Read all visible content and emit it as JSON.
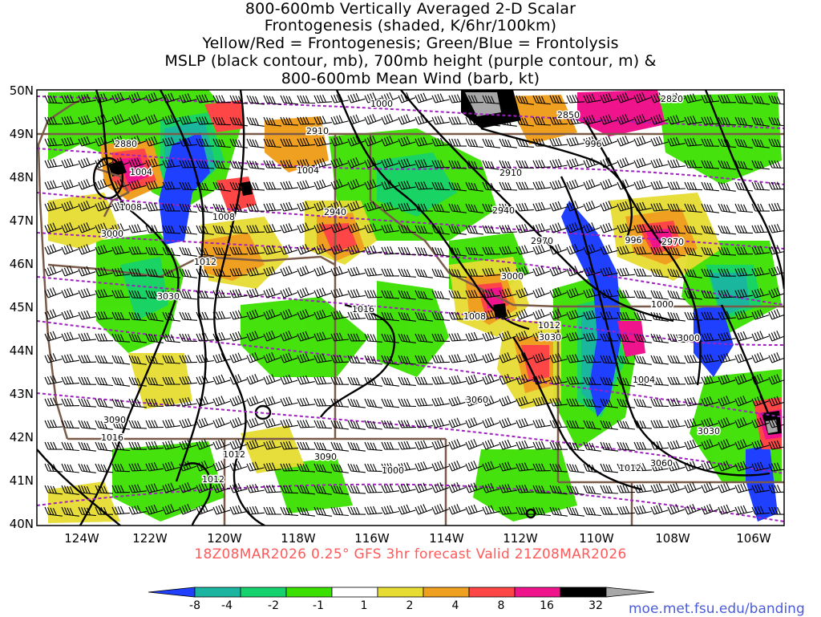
{
  "title_lines": [
    "800-600mb Vertically Averaged 2-D Scalar",
    "Frontogenesis (shaded, K/6hr/100km)",
    "Yellow/Red = Frontogenesis;  Green/Blue = Frontolysis",
    "MSLP (black contour, mb), 700mb height (purple contour, m) &",
    "800-600mb Mean Wind (barb, kt)"
  ],
  "map": {
    "lat_labels": [
      "50N",
      "49N",
      "48N",
      "47N",
      "46N",
      "45N",
      "44N",
      "43N",
      "42N",
      "41N",
      "40N"
    ],
    "lon_labels": [
      "124W",
      "122W",
      "120W",
      "118W",
      "116W",
      "114W",
      "112W",
      "110W",
      "108W",
      "106W"
    ],
    "mslp_labels": [
      "1000",
      "1004",
      "1008",
      "1012",
      "1016",
      "1000",
      "1004",
      "1008",
      "1012",
      "1016",
      "1012",
      "1012",
      "996",
      "1000",
      "1004",
      "1012",
      "996",
      "1008"
    ],
    "height_labels": [
      "2820",
      "2850",
      "2880",
      "2910",
      "2940",
      "2970",
      "3000",
      "3030",
      "3060",
      "3090",
      "2910",
      "2940",
      "2970",
      "3000",
      "3030",
      "3060",
      "3090",
      "3000",
      "3030"
    ],
    "colors": {
      "contour_mslp": "#000000",
      "contour_height": "#a020c0",
      "border": "#7a5a48",
      "wind_barb": "#000000"
    }
  },
  "footer": "18Z08MAR2026 0.25° GFS 3hr forecast Valid 21Z08MAR2026",
  "colorbar": {
    "labels": [
      "-8",
      "-4",
      "-2",
      "-1",
      "1",
      "2",
      "4",
      "8",
      "16",
      "32"
    ],
    "colors": [
      "#2040ff",
      "#1ab4a0",
      "#14d26e",
      "#3ce000",
      "#ffffff",
      "#e6dc32",
      "#f0a020",
      "#ff4646",
      "#f0148c",
      "#000000",
      "#a8a8a8"
    ]
  },
  "credit": "moe.met.fsu.edu/banding"
}
